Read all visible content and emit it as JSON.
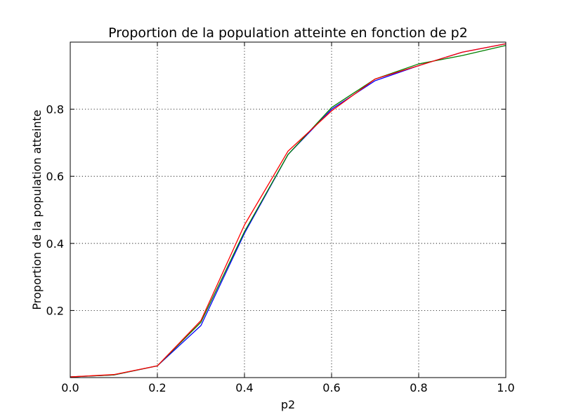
{
  "chart_data": {
    "type": "line",
    "title": "Proportion de la population atteinte en fonction de p2",
    "xlabel": "p2",
    "ylabel": "Proportion de la population atteinte",
    "xlim": [
      0.0,
      1.0
    ],
    "ylim": [
      0.0,
      1.0
    ],
    "grid": true,
    "legend": "none",
    "x_ticks": [
      {
        "value": 0.0,
        "label": "0.0"
      },
      {
        "value": 0.2,
        "label": "0.2"
      },
      {
        "value": 0.4,
        "label": "0.4"
      },
      {
        "value": 0.6,
        "label": "0.6"
      },
      {
        "value": 0.8,
        "label": "0.8"
      },
      {
        "value": 1.0,
        "label": "1.0"
      }
    ],
    "y_ticks": [
      {
        "value": 0.2,
        "label": "0.2"
      },
      {
        "value": 0.4,
        "label": "0.4"
      },
      {
        "value": 0.6,
        "label": "0.6"
      },
      {
        "value": 0.8,
        "label": "0.8"
      }
    ],
    "x": [
      0.0,
      0.1,
      0.2,
      0.3,
      0.4,
      0.5,
      0.6,
      0.7,
      0.8,
      0.9,
      1.0
    ],
    "series": [
      {
        "color": "#0000ff",
        "values": [
          0.002,
          0.008,
          0.035,
          0.155,
          0.43,
          0.665,
          0.8,
          0.885,
          0.93,
          0.97,
          0.995
        ]
      },
      {
        "color": "#008000",
        "values": [
          0.002,
          0.008,
          0.035,
          0.165,
          0.435,
          0.665,
          0.805,
          0.89,
          0.935,
          0.96,
          0.99
        ]
      },
      {
        "color": "#ff0000",
        "values": [
          0.002,
          0.009,
          0.035,
          0.17,
          0.455,
          0.675,
          0.795,
          0.89,
          0.93,
          0.97,
          0.995
        ]
      }
    ]
  }
}
